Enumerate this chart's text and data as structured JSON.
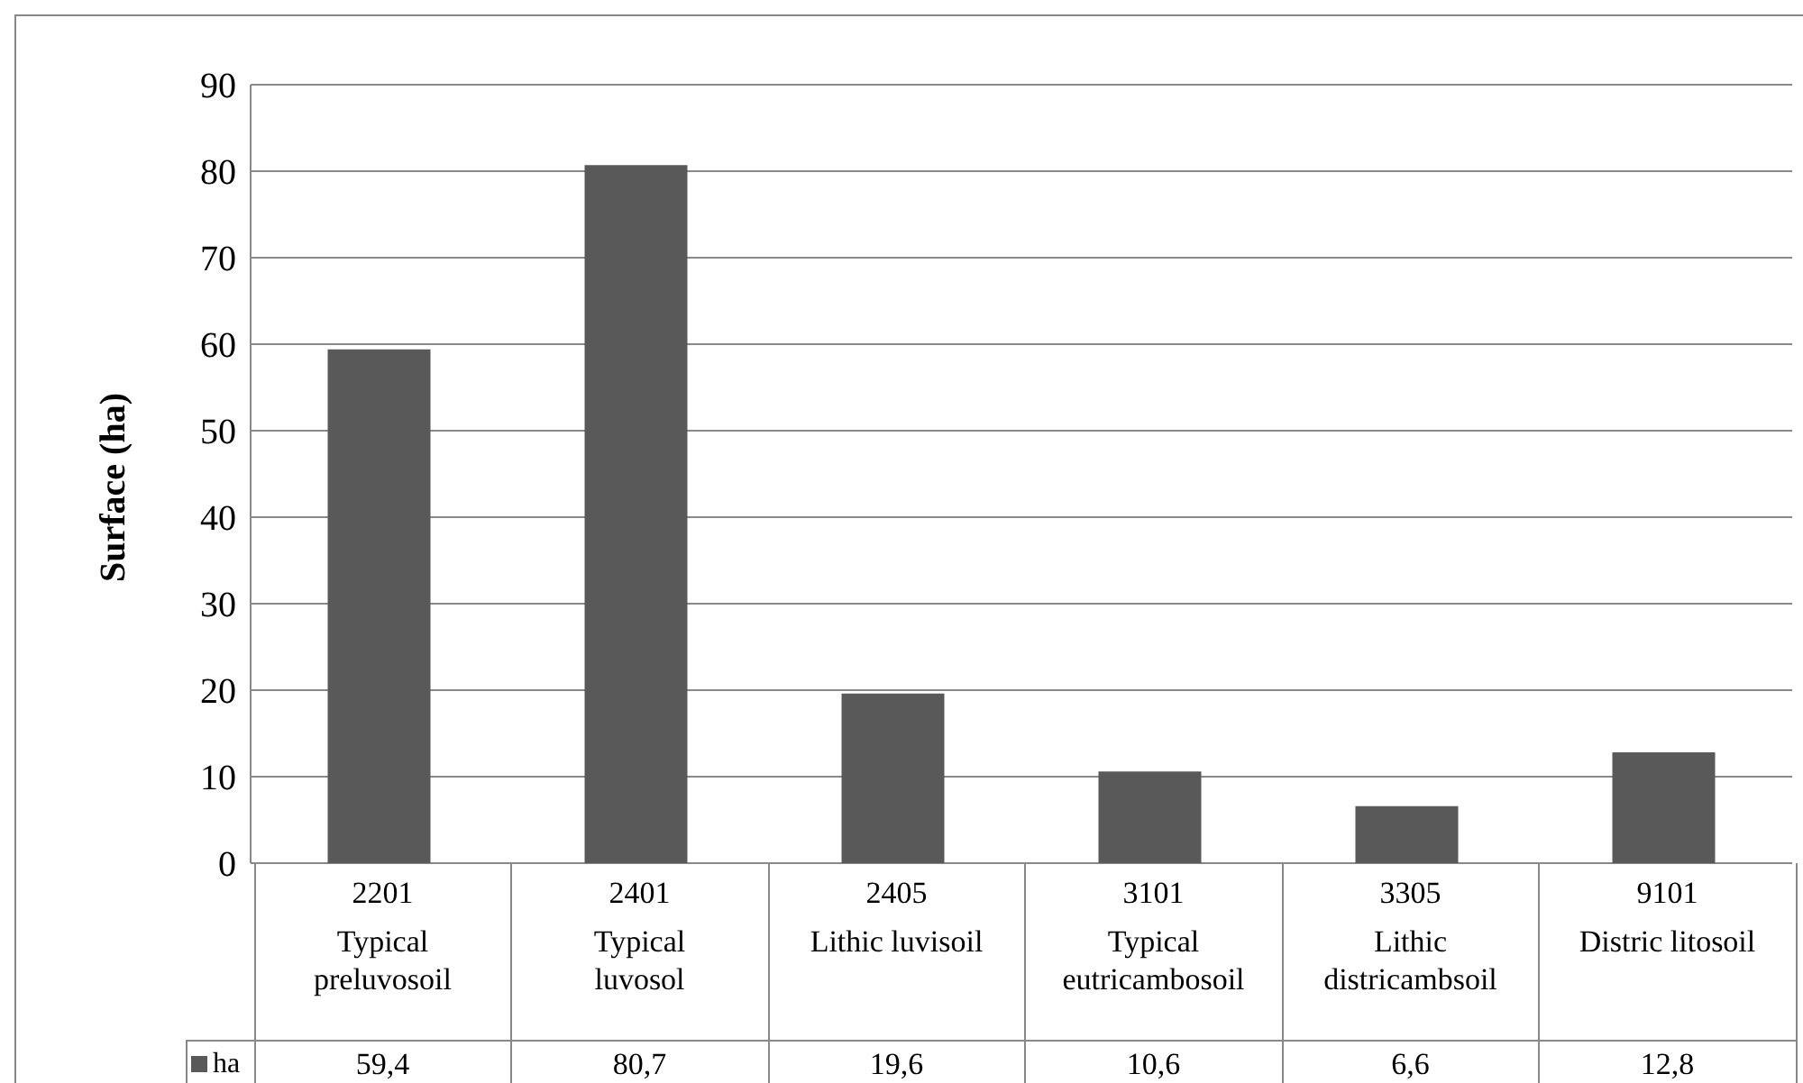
{
  "chart_data": {
    "type": "bar",
    "ylabel": "Surface (ha)",
    "categories": [
      "2201\nTypical\npreluvosoil",
      "2401\nTypical\nluvosol",
      "2405\nLithic luvisoil",
      "3101\nTypical\neutricambosoil",
      "3305\nLithic\ndistricambsoil",
      "9101\nDistric litosoil"
    ],
    "series": [
      {
        "name": "ha",
        "color": "#595959",
        "values": [
          59.4,
          80.7,
          19.6,
          10.6,
          6.6,
          12.8
        ],
        "value_labels": [
          "59,4",
          "80,7",
          "19,6",
          "10,6",
          "6,6",
          "12,8"
        ]
      }
    ],
    "ylim": [
      0,
      90
    ],
    "yticks": [
      0,
      10,
      20,
      30,
      40,
      50,
      60,
      70,
      80,
      90
    ],
    "grid": "y"
  }
}
